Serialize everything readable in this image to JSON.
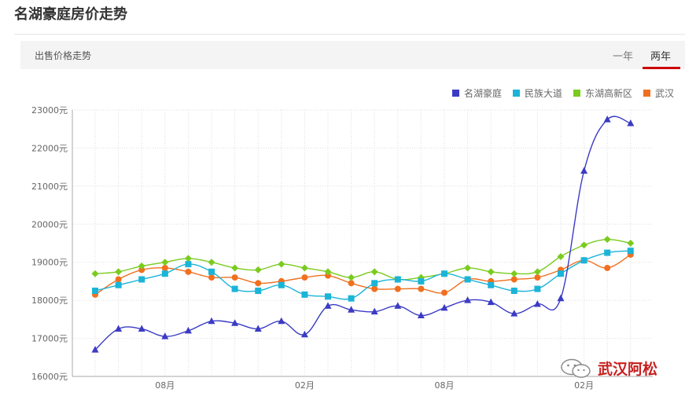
{
  "page": {
    "title": "名湖豪庭房价走势"
  },
  "tabs": {
    "label": "出售价格走势",
    "items": [
      {
        "label": "一年",
        "active": false
      },
      {
        "label": "两年",
        "active": true
      }
    ]
  },
  "watermark": {
    "text": "武汉阿松"
  },
  "colors": {
    "accent": "#cc0000"
  },
  "chart_data": {
    "type": "line",
    "title": "出售价格走势",
    "ylim": [
      16000,
      23000
    ],
    "yticks": [
      "16000元",
      "17000元",
      "18000元",
      "19000元",
      "20000元",
      "21000元",
      "22000元",
      "23000元"
    ],
    "ytick_values": [
      16000,
      17000,
      18000,
      19000,
      20000,
      21000,
      22000,
      23000
    ],
    "xlabels": [
      {
        "index": 3,
        "label": "08月"
      },
      {
        "index": 9,
        "label": "02月"
      },
      {
        "index": 15,
        "label": "08月"
      },
      {
        "index": 21,
        "label": "02月"
      }
    ],
    "n_points": 24,
    "grid": true,
    "legend_position": "top-right",
    "series": [
      {
        "name": "名湖豪庭",
        "color": "#3b3bc4",
        "marker": "triangle",
        "values": [
          16700,
          17250,
          17250,
          17050,
          17200,
          17450,
          17400,
          17250,
          17450,
          17100,
          17850,
          17750,
          17700,
          17850,
          17600,
          17800,
          18000,
          17950,
          17650,
          17900,
          18050,
          21400,
          22750,
          22650
        ]
      },
      {
        "name": "民族大道",
        "color": "#1bb4d8",
        "marker": "square",
        "values": [
          18250,
          18400,
          18550,
          18700,
          18950,
          18750,
          18300,
          18250,
          18400,
          18150,
          18100,
          18050,
          18450,
          18550,
          18500,
          18700,
          18550,
          18400,
          18250,
          18300,
          18700,
          19050,
          19250,
          19300
        ]
      },
      {
        "name": "东湖高新区",
        "color": "#7acb1e",
        "marker": "diamond",
        "values": [
          18700,
          18750,
          18900,
          19000,
          19100,
          19000,
          18850,
          18800,
          18950,
          18850,
          18750,
          18600,
          18750,
          18550,
          18600,
          18700,
          18850,
          18750,
          18700,
          18750,
          19150,
          19450,
          19600,
          19500
        ]
      },
      {
        "name": "武汉",
        "color": "#f07020",
        "marker": "circle",
        "values": [
          18150,
          18550,
          18800,
          18850,
          18750,
          18600,
          18600,
          18450,
          18500,
          18600,
          18650,
          18450,
          18300,
          18300,
          18300,
          18200,
          18550,
          18500,
          18550,
          18600,
          18800,
          19050,
          18850,
          19200
        ]
      }
    ]
  }
}
